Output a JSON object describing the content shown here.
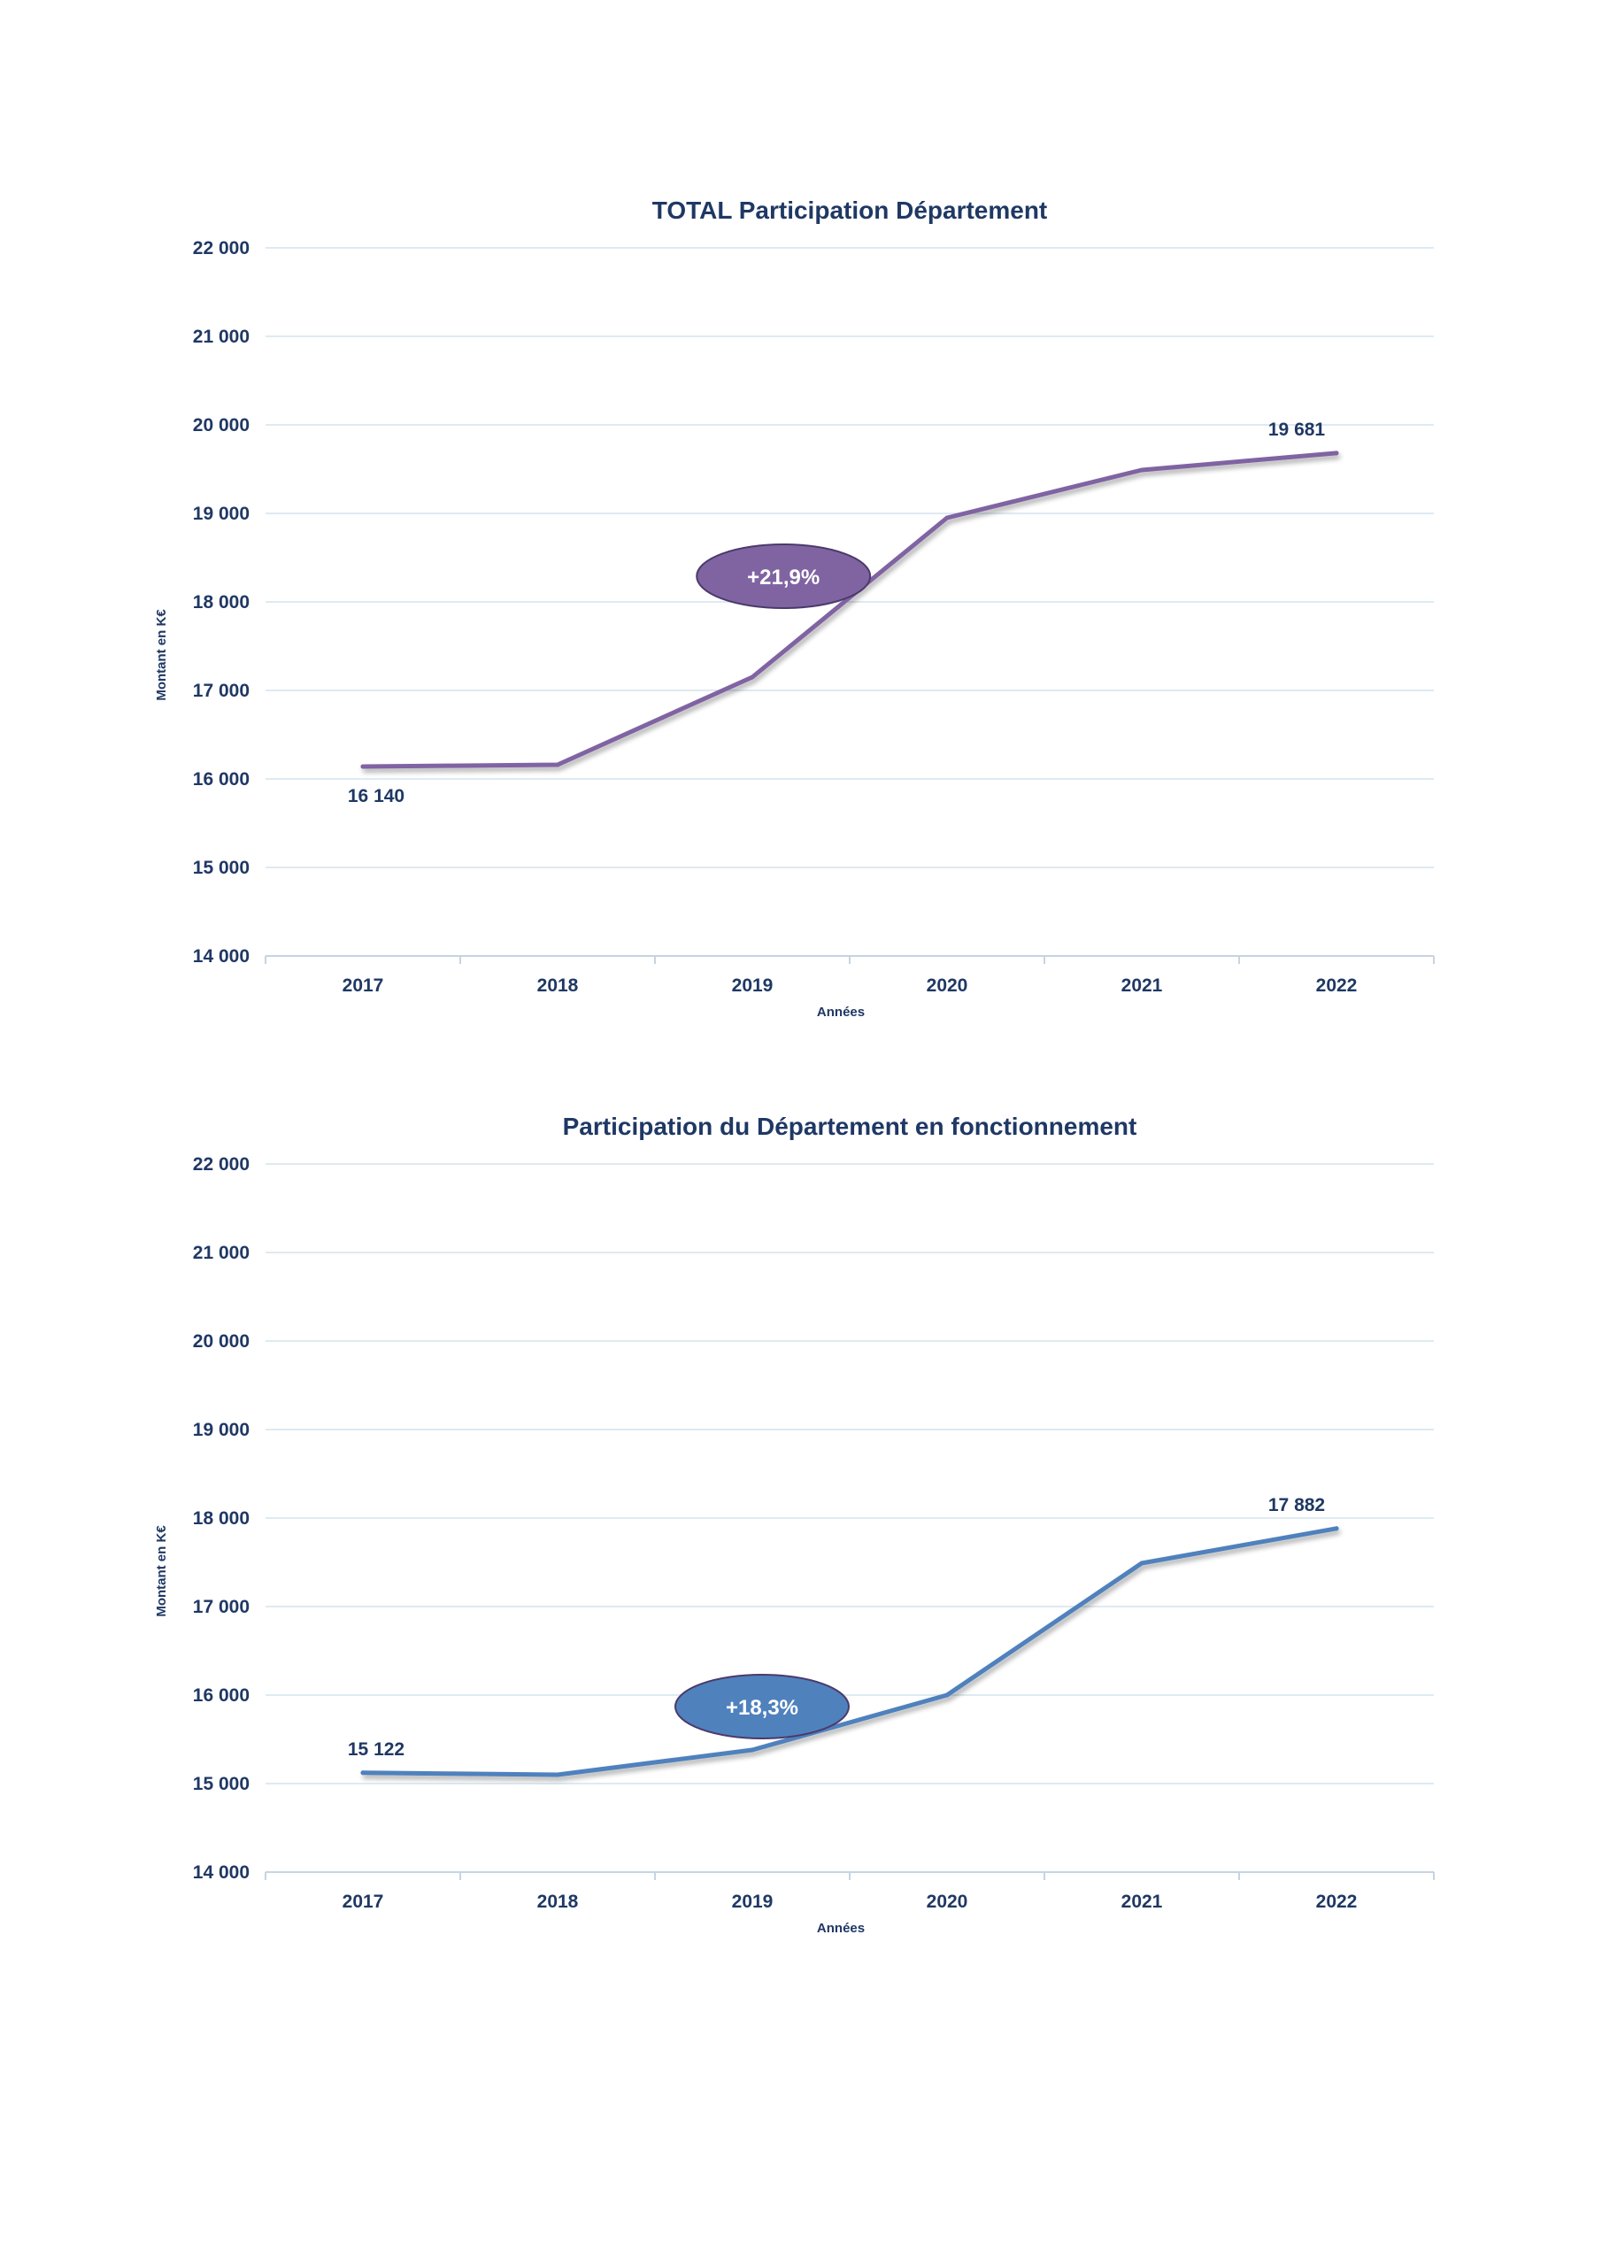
{
  "chart_data": [
    {
      "type": "line",
      "title": "TOTAL Participation Département",
      "xlabel": "Années",
      "ylabel": "Montant en K€",
      "ylim": [
        14000,
        22000
      ],
      "yticks": [
        14000,
        15000,
        16000,
        17000,
        18000,
        19000,
        20000,
        21000,
        22000
      ],
      "ytick_labels": [
        "14 000",
        "15 000",
        "16 000",
        "17 000",
        "18 000",
        "19 000",
        "20 000",
        "21 000",
        "22 000"
      ],
      "categories": [
        "2017",
        "2018",
        "2019",
        "2020",
        "2021",
        "2022"
      ],
      "series": [
        {
          "color": "#8064a2",
          "values": [
            16140,
            16160,
            17150,
            18950,
            19490,
            19681
          ]
        }
      ],
      "data_labels": [
        {
          "index": 0,
          "text": "16 140",
          "position": "below"
        },
        {
          "index": 5,
          "text": "19 681",
          "position": "above"
        }
      ],
      "annotation": {
        "text": "+21,9%",
        "color": "#8064a2",
        "x": 2019.16,
        "y": 18290
      },
      "grid": true,
      "legend": "none"
    },
    {
      "type": "line",
      "title": "Participation du Département en fonctionnement",
      "xlabel": "Années",
      "ylabel": "Montant en K€",
      "ylim": [
        14000,
        22000
      ],
      "yticks": [
        14000,
        15000,
        16000,
        17000,
        18000,
        19000,
        20000,
        21000,
        22000
      ],
      "ytick_labels": [
        "14 000",
        "15 000",
        "16 000",
        "17 000",
        "18 000",
        "19 000",
        "20 000",
        "21 000",
        "22 000"
      ],
      "categories": [
        "2017",
        "2018",
        "2019",
        "2020",
        "2021",
        "2022"
      ],
      "series": [
        {
          "color": "#4f81bd",
          "values": [
            15122,
            15100,
            15380,
            16000,
            17490,
            17882
          ]
        }
      ],
      "data_labels": [
        {
          "index": 0,
          "text": "15 122",
          "position": "above"
        },
        {
          "index": 5,
          "text": "17 882",
          "position": "above"
        }
      ],
      "annotation": {
        "text": "+18,3%",
        "color": "#4f81bd",
        "x": 2019.05,
        "y": 15870
      },
      "grid": true,
      "legend": "none"
    }
  ]
}
